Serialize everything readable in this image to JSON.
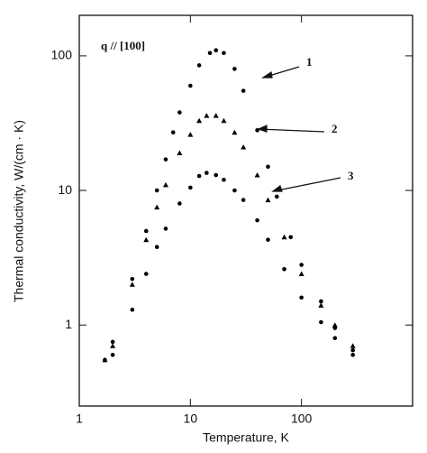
{
  "chart_data": {
    "type": "scatter",
    "annotation": "q // [100]",
    "xlabel": "Temperature, K",
    "ylabel": "Thermal conductivity, W/(cm · K)",
    "xlog": true,
    "ylog": true,
    "xlim": [
      1,
      1000
    ],
    "ylim": [
      0.25,
      200
    ],
    "xticks": [
      1,
      10,
      100
    ],
    "yticks": [
      1,
      10,
      100
    ],
    "series": [
      {
        "name": "1",
        "color": "#000000",
        "marker": "circle",
        "x": [
          1.7,
          2,
          3,
          4,
          5,
          6,
          7,
          8,
          10,
          12,
          15,
          17,
          20,
          25,
          30,
          40,
          50,
          60,
          80,
          100,
          150,
          200,
          290
        ],
        "values": [
          0.55,
          0.75,
          2.2,
          5,
          10,
          17,
          27,
          38,
          60,
          85,
          105,
          110,
          105,
          80,
          55,
          28,
          15,
          9,
          4.5,
          2.8,
          1.5,
          0.95,
          0.6
        ]
      },
      {
        "name": "2",
        "color": "#000000",
        "marker": "triangle",
        "x": [
          1.7,
          2,
          3,
          4,
          5,
          6,
          8,
          10,
          12,
          14,
          17,
          20,
          25,
          30,
          40,
          50,
          70,
          100,
          150,
          200,
          290
        ],
        "values": [
          0.55,
          0.7,
          2.0,
          4.3,
          7.5,
          11,
          19,
          26,
          33,
          36,
          36,
          33,
          27,
          21,
          13,
          8.5,
          4.5,
          2.4,
          1.4,
          1.0,
          0.7
        ]
      },
      {
        "name": "3",
        "color": "#000000",
        "marker": "circle",
        "x": [
          2,
          3,
          4,
          5,
          6,
          8,
          10,
          12,
          14,
          17,
          20,
          25,
          30,
          40,
          50,
          70,
          100,
          150,
          200,
          290
        ],
        "values": [
          0.6,
          1.3,
          2.4,
          3.8,
          5.2,
          8,
          10.5,
          12.8,
          13.5,
          13,
          12,
          10,
          8.5,
          6,
          4.3,
          2.6,
          1.6,
          1.05,
          0.8,
          0.65
        ]
      }
    ]
  }
}
